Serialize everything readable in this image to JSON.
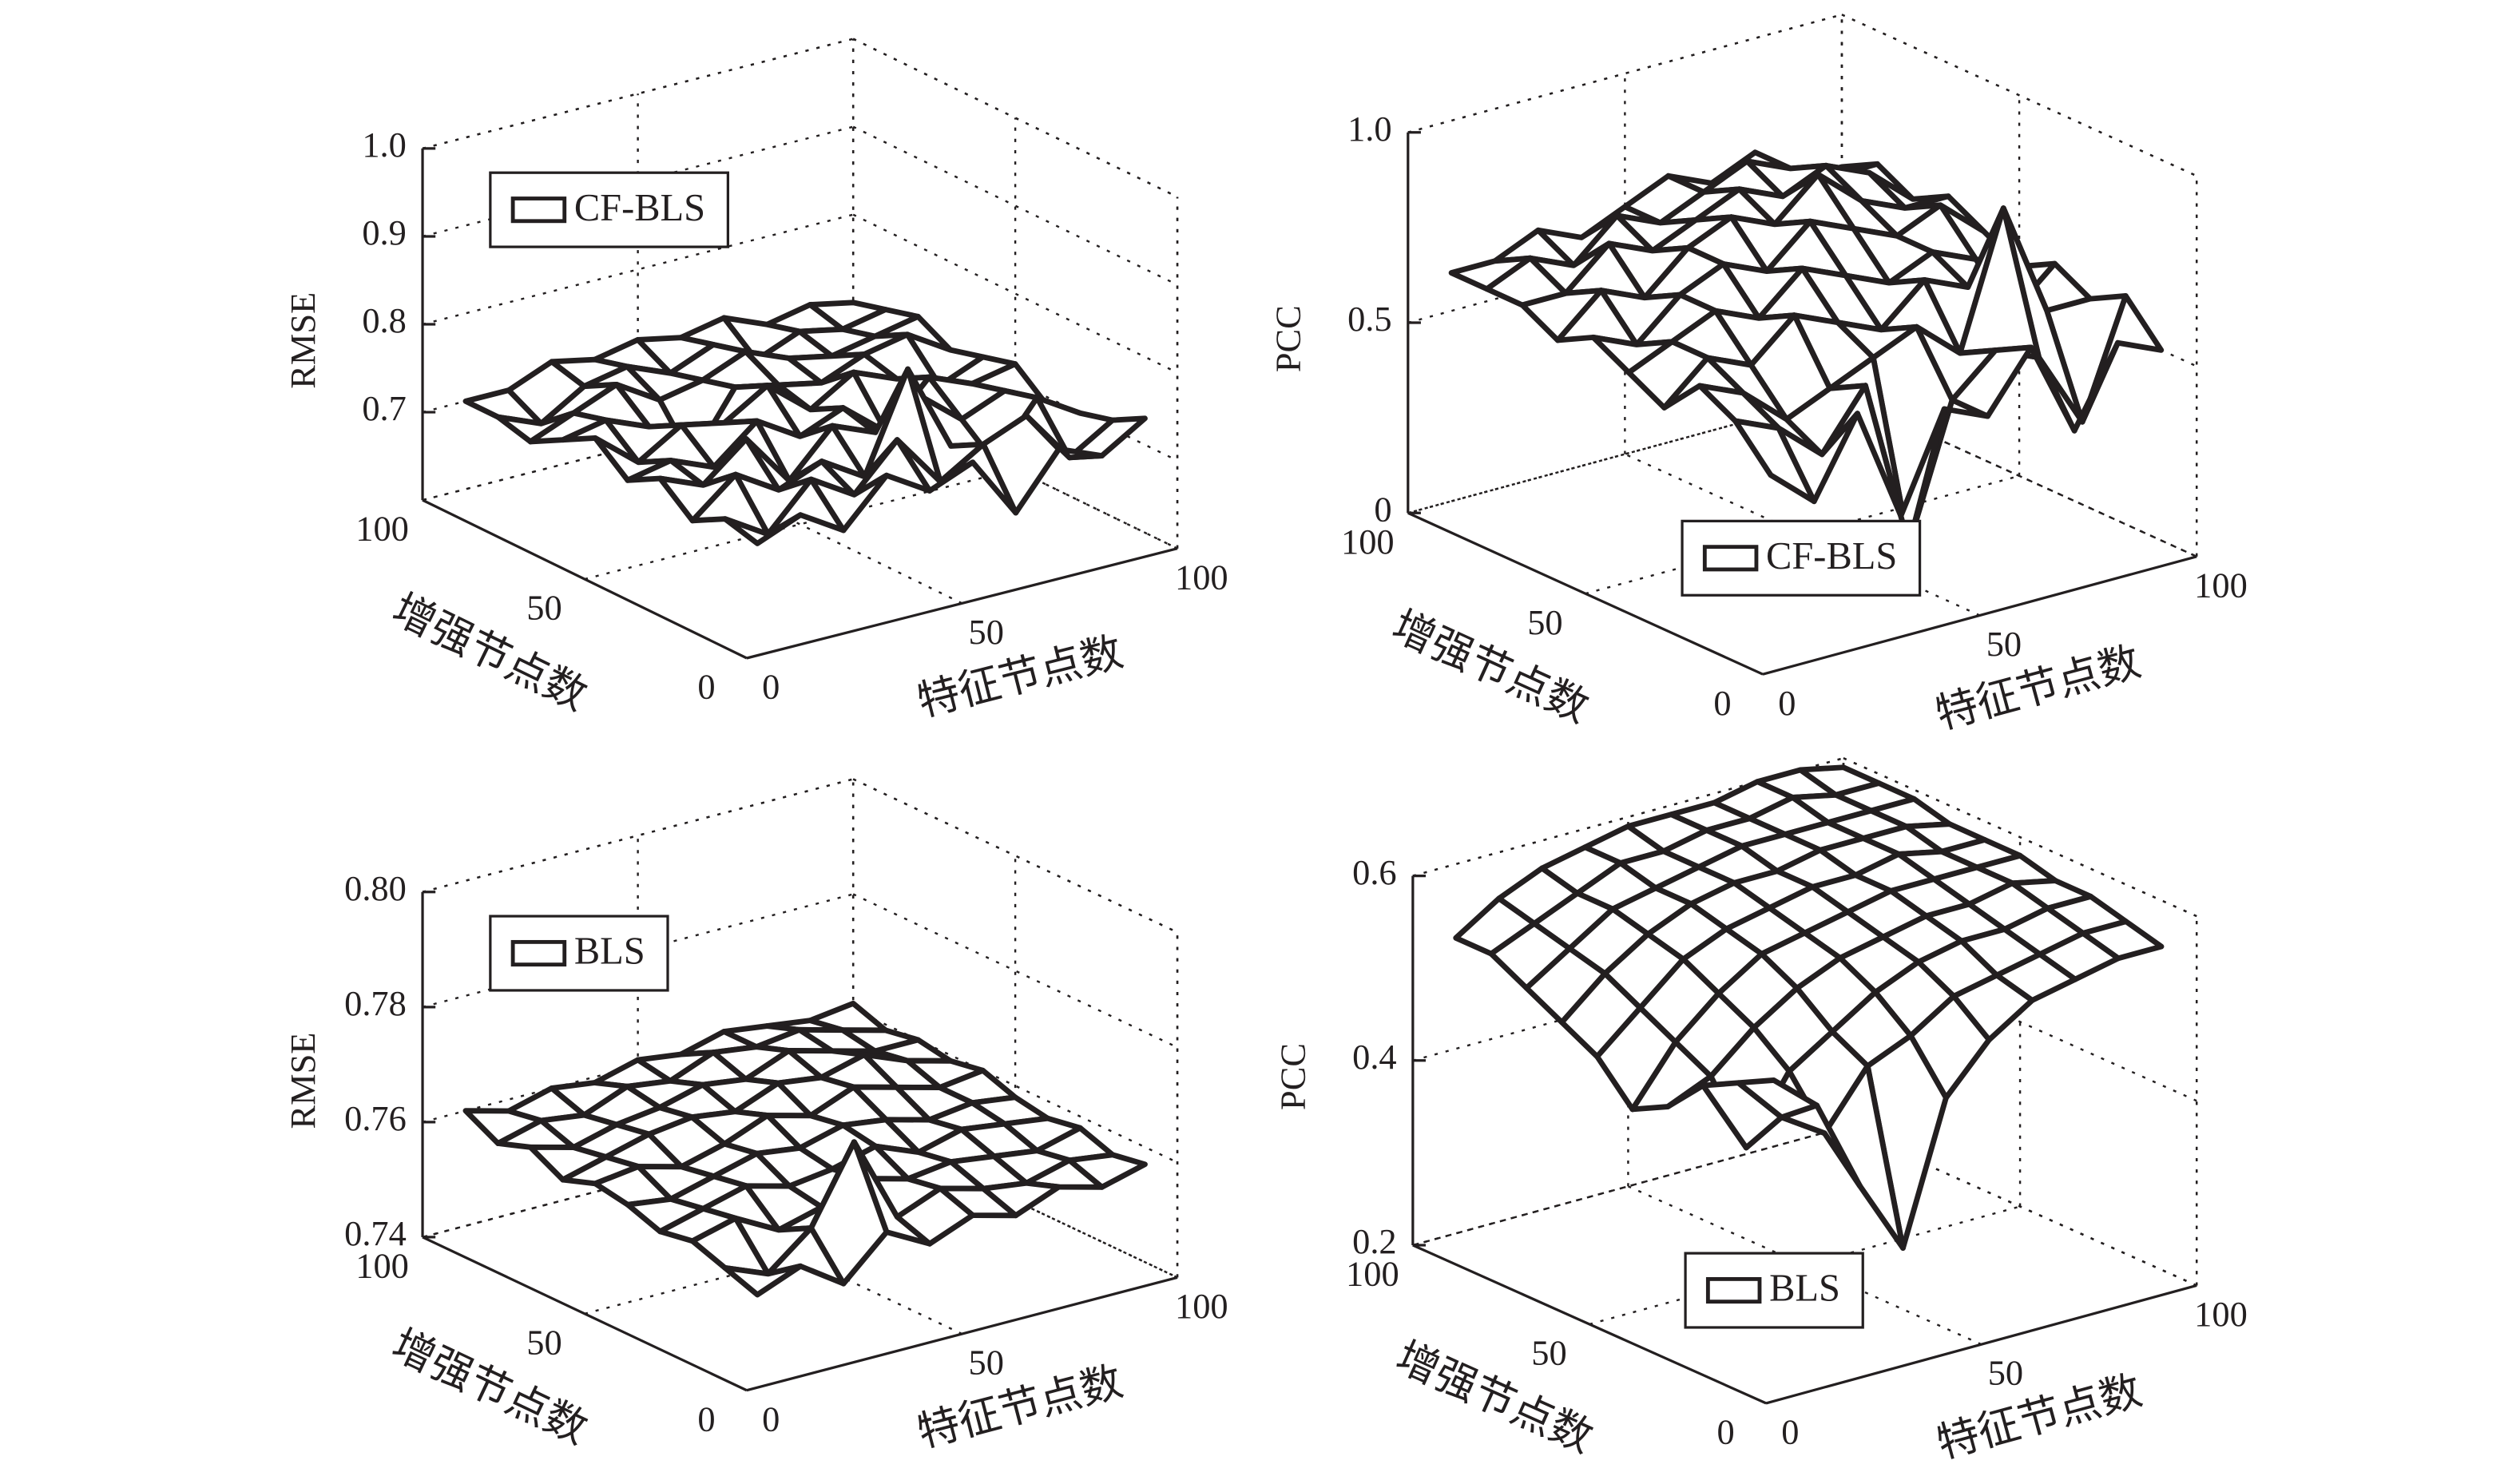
{
  "chart_data": [
    {
      "type": "surface3d",
      "zlabel": "RMSE",
      "xlabel": "特征节点数",
      "ylabel": "增强节点数",
      "legend_corner": "upper left",
      "x": [
        10,
        20,
        30,
        40,
        50,
        60,
        70,
        80,
        90,
        100
      ],
      "y": [
        10,
        20,
        30,
        40,
        50,
        60,
        70,
        80,
        90,
        100
      ],
      "xlim": [
        0,
        100
      ],
      "ylim": [
        0,
        100
      ],
      "zlim": [
        0.6,
        1.0
      ],
      "xticks": [
        0,
        50,
        100
      ],
      "yticks": [
        0,
        50,
        100
      ],
      "zticks": [
        0.7,
        0.8,
        0.9,
        {
          "value": 1,
          "label": "1.0"
        }
      ],
      "grid": true,
      "series": [
        {
          "name": "CF-BLS",
          "color": "#231f20",
          "values": [
            [
              0.7,
              0.72,
              0.69,
              0.74,
              0.71,
              0.73,
              0.66,
              0.72,
              0.7,
              0.73
            ],
            [
              0.71,
              0.68,
              0.73,
              0.7,
              0.75,
              0.69,
              0.72,
              0.74,
              0.68,
              0.71
            ],
            [
              0.69,
              0.73,
              0.7,
              0.72,
              0.69,
              0.8,
              0.7,
              0.67,
              0.73,
              0.7
            ],
            [
              0.72,
              0.7,
              0.74,
              0.68,
              0.73,
              0.71,
              0.74,
              0.7,
              0.72,
              0.69
            ],
            [
              0.7,
              0.71,
              0.69,
              0.73,
              0.7,
              0.72,
              0.68,
              0.73,
              0.71,
              0.72
            ],
            [
              0.73,
              0.69,
              0.72,
              0.71,
              0.74,
              0.7,
              0.73,
              0.71,
              0.69,
              0.71
            ],
            [
              0.71,
              0.72,
              0.7,
              0.65,
              0.72,
              0.71,
              0.7,
              0.72,
              0.73,
              0.7
            ],
            [
              0.69,
              0.71,
              0.73,
              0.7,
              0.71,
              0.73,
              0.71,
              0.7,
              0.71,
              0.72
            ],
            [
              0.7,
              0.68,
              0.71,
              0.72,
              0.7,
              0.72,
              0.69,
              0.71,
              0.7,
              0.71
            ],
            [
              0.7,
              0.7,
              0.72,
              0.71,
              0.72,
              0.71,
              0.72,
              0.7,
              0.71,
              0.7
            ]
          ]
        }
      ]
    },
    {
      "type": "surface3d",
      "zlabel": "PCC",
      "xlabel": "特征节点数",
      "ylabel": "增强节点数",
      "legend_corner": "lower center",
      "x": [
        10,
        20,
        30,
        40,
        50,
        60,
        70,
        80,
        90,
        100
      ],
      "y": [
        10,
        20,
        30,
        40,
        50,
        60,
        70,
        80,
        90,
        100
      ],
      "xlim": [
        0,
        100
      ],
      "ylim": [
        0,
        100
      ],
      "zlim": [
        0,
        1.0
      ],
      "xticks": [
        0,
        50,
        100
      ],
      "yticks": [
        0,
        50,
        100
      ],
      "zticks": [
        0,
        0.5,
        {
          "value": 1,
          "label": "1.0"
        }
      ],
      "grid": true,
      "series": [
        {
          "name": "CF-BLS",
          "color": "#231f20",
          "values": [
            [
              0.45,
              0.35,
              0.55,
              0.25,
              0.5,
              0.45,
              0.6,
              0.35,
              0.55,
              0.5
            ],
            [
              0.55,
              0.5,
              0.4,
              0.55,
              0.1,
              0.45,
              0.55,
              0.5,
              0.3,
              0.6
            ],
            [
              0.6,
              0.55,
              0.45,
              0.5,
              0.55,
              0.6,
              0.5,
              0.85,
              0.55,
              0.55
            ],
            [
              0.5,
              0.6,
              0.55,
              0.65,
              0.6,
              0.55,
              0.65,
              0.6,
              0.5,
              0.6
            ],
            [
              0.55,
              0.6,
              0.65,
              0.6,
              0.7,
              0.65,
              0.6,
              0.65,
              0.6,
              0.55
            ],
            [
              0.6,
              0.55,
              0.65,
              0.7,
              0.65,
              0.75,
              0.7,
              0.65,
              0.7,
              0.6
            ],
            [
              0.55,
              0.65,
              0.6,
              0.7,
              0.75,
              0.7,
              0.8,
              0.7,
              0.65,
              0.65
            ],
            [
              0.6,
              0.6,
              0.7,
              0.65,
              0.7,
              0.75,
              0.7,
              0.75,
              0.7,
              0.6
            ],
            [
              0.6,
              0.65,
              0.6,
              0.7,
              0.65,
              0.7,
              0.75,
              0.7,
              0.65,
              0.65
            ],
            [
              0.6,
              0.6,
              0.65,
              0.6,
              0.65,
              0.7,
              0.65,
              0.7,
              0.6,
              0.6
            ]
          ]
        }
      ]
    },
    {
      "type": "surface3d",
      "zlabel": "RMSE",
      "xlabel": "特征节点数",
      "ylabel": "增强节点数",
      "legend_corner": "upper left",
      "x": [
        10,
        20,
        30,
        40,
        50,
        60,
        70,
        80,
        90,
        100
      ],
      "y": [
        10,
        20,
        30,
        40,
        50,
        60,
        70,
        80,
        90,
        100
      ],
      "xlim": [
        0,
        100
      ],
      "ylim": [
        0,
        100
      ],
      "zlim": [
        0.74,
        0.8
      ],
      "xticks": [
        0,
        50,
        100
      ],
      "yticks": [
        0,
        50,
        100
      ],
      "zticks": [
        0.74,
        0.76,
        0.78,
        {
          "value": 0.8,
          "label": "0.80"
        }
      ],
      "grid": true,
      "series": [
        {
          "name": "BLS",
          "color": "#231f20",
          "values": [
            [
              0.752,
              0.755,
              0.75,
              0.757,
              0.753,
              0.756,
              0.754,
              0.757,
              0.755,
              0.757
            ],
            [
              0.754,
              0.751,
              0.757,
              0.77,
              0.755,
              0.758,
              0.756,
              0.755,
              0.757,
              0.756
            ],
            [
              0.756,
              0.758,
              0.754,
              0.756,
              0.759,
              0.757,
              0.758,
              0.757,
              0.756,
              0.758
            ],
            [
              0.755,
              0.757,
              0.759,
              0.757,
              0.758,
              0.76,
              0.757,
              0.759,
              0.758,
              0.757
            ],
            [
              0.757,
              0.756,
              0.758,
              0.76,
              0.759,
              0.761,
              0.76,
              0.758,
              0.759,
              0.758
            ],
            [
              0.758,
              0.759,
              0.757,
              0.759,
              0.762,
              0.76,
              0.763,
              0.761,
              0.759,
              0.76
            ],
            [
              0.756,
              0.758,
              0.76,
              0.761,
              0.76,
              0.763,
              0.762,
              0.764,
              0.761,
              0.759
            ],
            [
              0.759,
              0.757,
              0.759,
              0.76,
              0.762,
              0.761,
              0.764,
              0.762,
              0.76,
              0.76
            ],
            [
              0.757,
              0.759,
              0.758,
              0.761,
              0.76,
              0.763,
              0.762,
              0.763,
              0.761,
              0.759
            ],
            [
              0.76,
              0.758,
              0.76,
              0.759,
              0.761,
              0.76,
              0.762,
              0.761,
              0.76,
              0.761
            ]
          ]
        }
      ]
    },
    {
      "type": "surface3d",
      "zlabel": "PCC",
      "xlabel": "特征节点数",
      "ylabel": "增强节点数",
      "legend_corner": "lower center",
      "x": [
        10,
        20,
        30,
        40,
        50,
        60,
        70,
        80,
        90,
        100
      ],
      "y": [
        10,
        20,
        30,
        40,
        50,
        60,
        70,
        80,
        90,
        100
      ],
      "xlim": [
        0,
        100
      ],
      "ylim": [
        0,
        100
      ],
      "zlim": [
        0.2,
        0.6
      ],
      "xticks": [
        0,
        50,
        100
      ],
      "yticks": [
        0,
        50,
        100
      ],
      "zticks": [
        0.2,
        0.4,
        0.6
      ],
      "grid": true,
      "series": [
        {
          "name": "BLS",
          "color": "#231f20",
          "values": [
            [
              0.52,
              0.48,
              0.38,
              0.3,
              0.45,
              0.5,
              0.53,
              0.54,
              0.55,
              0.55
            ],
            [
              0.5,
              0.45,
              0.42,
              0.48,
              0.5,
              0.53,
              0.54,
              0.55,
              0.56,
              0.56
            ],
            [
              0.48,
              0.4,
              0.47,
              0.5,
              0.53,
              0.55,
              0.56,
              0.56,
              0.57,
              0.57
            ],
            [
              0.44,
              0.46,
              0.5,
              0.53,
              0.55,
              0.56,
              0.57,
              0.57,
              0.58,
              0.57
            ],
            [
              0.42,
              0.48,
              0.52,
              0.55,
              0.56,
              0.57,
              0.58,
              0.58,
              0.58,
              0.58
            ],
            [
              0.46,
              0.5,
              0.54,
              0.56,
              0.57,
              0.58,
              0.58,
              0.59,
              0.58,
              0.58
            ],
            [
              0.48,
              0.52,
              0.55,
              0.57,
              0.58,
              0.58,
              0.59,
              0.59,
              0.59,
              0.58
            ],
            [
              0.5,
              0.53,
              0.56,
              0.57,
              0.58,
              0.59,
              0.59,
              0.59,
              0.59,
              0.59
            ],
            [
              0.52,
              0.54,
              0.56,
              0.58,
              0.58,
              0.59,
              0.59,
              0.6,
              0.59,
              0.59
            ],
            [
              0.52,
              0.55,
              0.57,
              0.58,
              0.59,
              0.59,
              0.59,
              0.6,
              0.6,
              0.59
            ]
          ]
        }
      ]
    }
  ]
}
